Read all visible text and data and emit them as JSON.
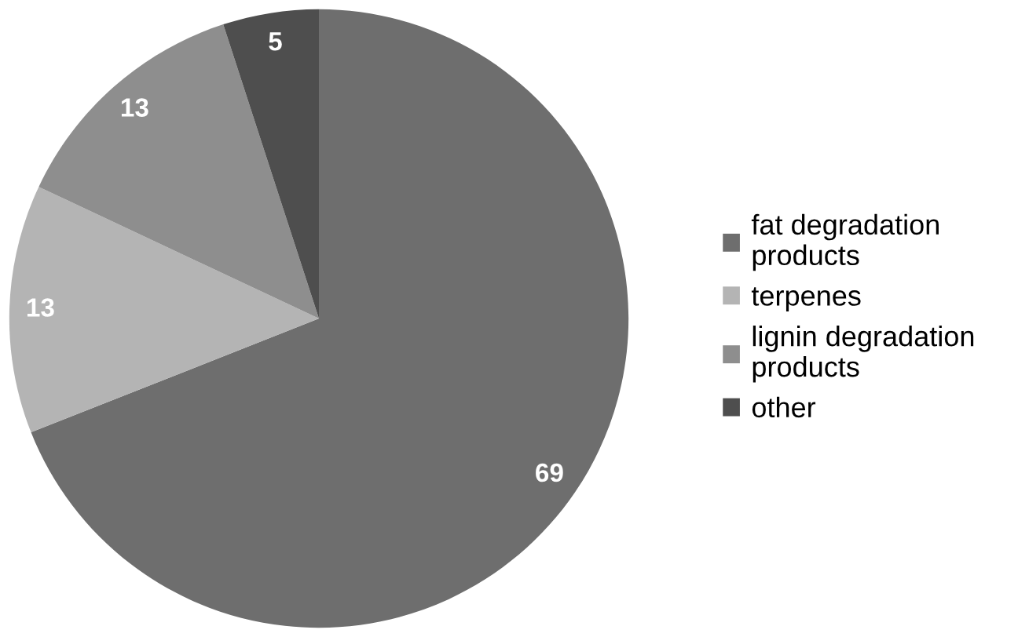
{
  "chart_data": {
    "type": "pie",
    "categories": [
      "fat degradation\nproducts",
      "terpenes",
      "lignin degradation\nproducts",
      "other"
    ],
    "values": [
      69,
      13,
      13,
      5
    ],
    "colors": [
      "#6e6e6e",
      "#b4b4b4",
      "#8e8e8e",
      "#4e4e4e"
    ],
    "data_labels": true,
    "legend": "right"
  }
}
